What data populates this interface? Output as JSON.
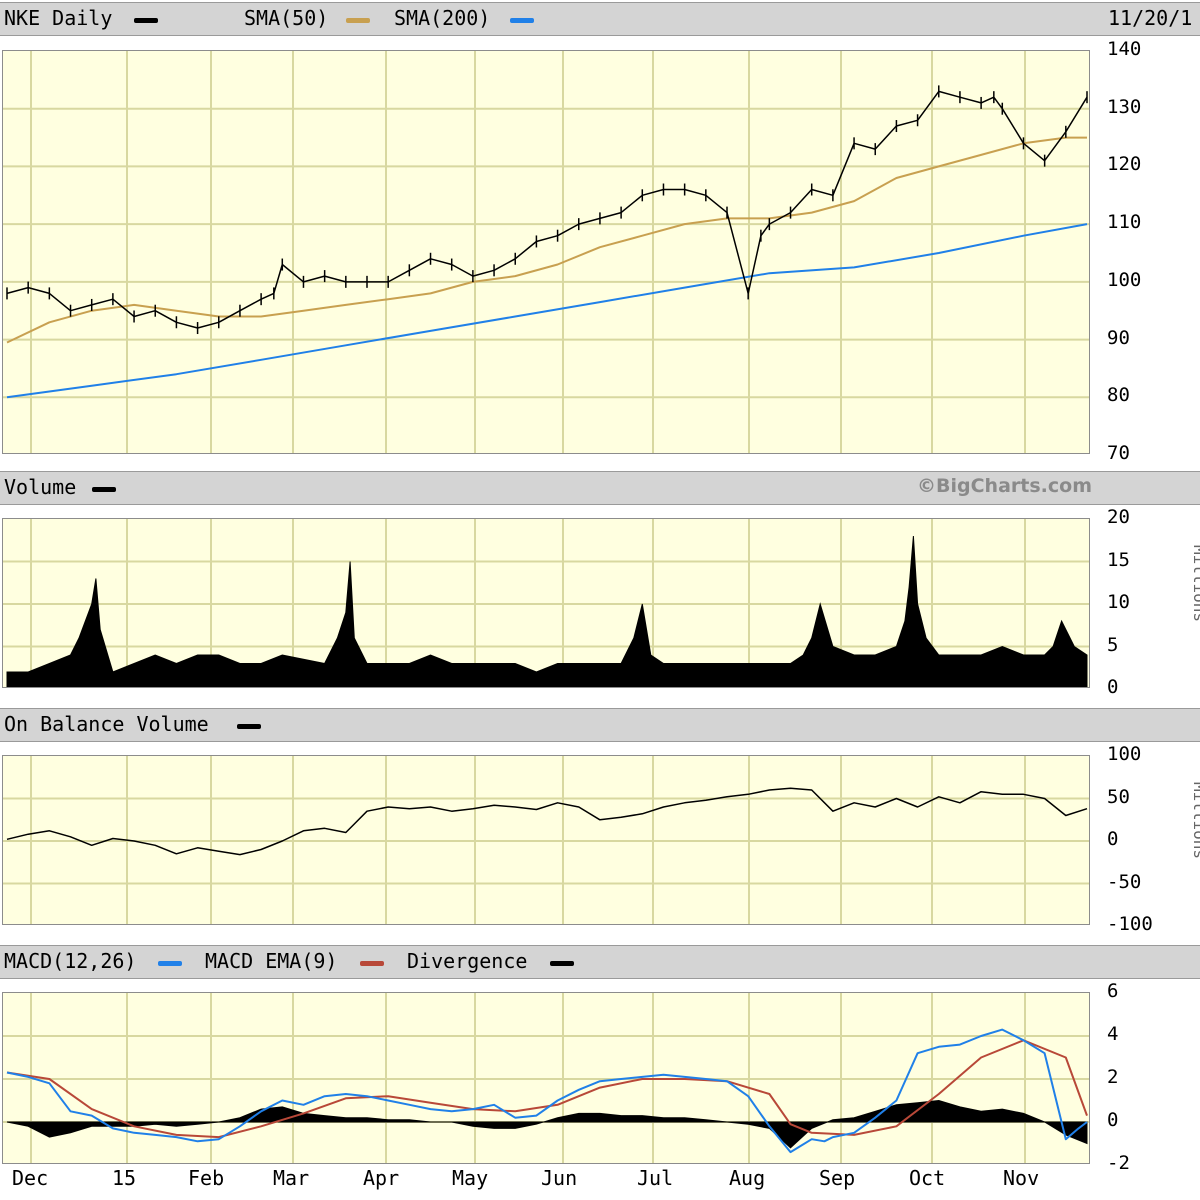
{
  "headers": {
    "price": {
      "title": "NKE Daily",
      "sma50": "SMA(50)",
      "sma200": "SMA(200)",
      "date": "11/20/1"
    },
    "volume": {
      "title": "Volume",
      "copyright": "©BigCharts.com"
    },
    "obv": {
      "title": "On Balance Volume"
    },
    "macd": {
      "title": "MACD(12,26)",
      "ema": "MACD EMA(9)",
      "div": "Divergence"
    }
  },
  "units": {
    "volume": "Millions",
    "obv": "Millions"
  },
  "colors": {
    "price": "#000000",
    "sma50": "#c8a050",
    "sma200": "#2080e8",
    "macd": "#2080e8",
    "ema": "#b84838",
    "grid": "#d8d8a0",
    "bg": "#ffffe0"
  },
  "chart_data": [
    {
      "type": "line",
      "title": "NKE Daily",
      "ylim": [
        70,
        140
      ],
      "yticks": [
        "140",
        "130",
        "120",
        "110",
        "100",
        "90",
        "80",
        "70"
      ],
      "x_labels": [
        "Dec",
        "15",
        "Feb",
        "Mar",
        "Apr",
        "May",
        "Jun",
        "Jul",
        "Aug",
        "Sep",
        "Oct",
        "Nov"
      ],
      "series": [
        {
          "name": "NKE Daily",
          "x": [
            0,
            5,
            10,
            15,
            20,
            25,
            30,
            35,
            40,
            45,
            50,
            55,
            60,
            63,
            65,
            70,
            75,
            80,
            85,
            90,
            95,
            100,
            105,
            110,
            115,
            120,
            125,
            130,
            135,
            140,
            145,
            150,
            155,
            160,
            165,
            170,
            175,
            178,
            180,
            185,
            190,
            195,
            200,
            205,
            210,
            215,
            220,
            225,
            230,
            233,
            235,
            240,
            245,
            250,
            255
          ],
          "values": [
            98,
            99,
            98,
            95,
            96,
            97,
            94,
            95,
            93,
            92,
            93,
            95,
            97,
            98,
            103,
            100,
            101,
            100,
            100,
            100,
            102,
            104,
            103,
            101,
            102,
            104,
            107,
            108,
            110,
            111,
            112,
            115,
            116,
            116,
            115,
            112,
            98,
            108,
            110,
            112,
            116,
            115,
            124,
            123,
            127,
            128,
            133,
            132,
            131,
            132,
            130,
            124,
            121,
            126,
            132
          ]
        },
        {
          "name": "SMA(50)",
          "x": [
            0,
            10,
            20,
            30,
            40,
            50,
            60,
            70,
            80,
            90,
            100,
            110,
            120,
            130,
            140,
            150,
            160,
            170,
            180,
            190,
            200,
            210,
            220,
            230,
            240,
            250,
            255
          ],
          "values": [
            89.5,
            93,
            95,
            96,
            95,
            94,
            94,
            95,
            96,
            97,
            98,
            100,
            101,
            103,
            106,
            108,
            110,
            111,
            111,
            112,
            114,
            118,
            120,
            122,
            124,
            125,
            125
          ]
        },
        {
          "name": "SMA(200)",
          "x": [
            0,
            20,
            40,
            60,
            80,
            100,
            120,
            140,
            160,
            180,
            200,
            220,
            240,
            255
          ],
          "values": [
            80,
            82,
            84,
            86.5,
            89,
            91.5,
            94,
            96.5,
            99,
            101.5,
            102.5,
            105,
            108,
            110
          ]
        }
      ]
    },
    {
      "type": "bar",
      "title": "Volume",
      "ylabel": "Millions",
      "ylim": [
        0,
        20
      ],
      "yticks": [
        "20",
        "15",
        "10",
        "5",
        "0"
      ],
      "series": [
        {
          "name": "Volume",
          "x": [
            0,
            5,
            10,
            15,
            17,
            20,
            21,
            22,
            25,
            30,
            35,
            40,
            45,
            50,
            55,
            60,
            65,
            75,
            78,
            80,
            81,
            82,
            85,
            90,
            95,
            100,
            105,
            110,
            115,
            120,
            125,
            130,
            140,
            145,
            148,
            150,
            152,
            155,
            160,
            165,
            170,
            180,
            185,
            188,
            190,
            192,
            195,
            200,
            205,
            210,
            212,
            213,
            214,
            215,
            217,
            220,
            225,
            230,
            235,
            240,
            245,
            247,
            249,
            252,
            255
          ],
          "values": [
            2,
            2,
            3,
            4,
            6,
            10,
            13,
            7,
            2,
            3,
            4,
            3,
            4,
            4,
            3,
            3,
            4,
            3,
            6,
            9,
            15,
            6,
            3,
            3,
            3,
            4,
            3,
            3,
            3,
            3,
            2,
            3,
            3,
            3,
            6,
            10,
            4,
            3,
            3,
            3,
            3,
            3,
            3,
            4,
            6,
            10,
            5,
            4,
            4,
            5,
            8,
            12,
            18,
            10,
            6,
            4,
            4,
            4,
            5,
            4,
            4,
            5,
            8,
            5,
            4
          ]
        }
      ]
    },
    {
      "type": "line",
      "title": "On Balance Volume",
      "ylabel": "Millions",
      "ylim": [
        -100,
        100
      ],
      "yticks": [
        "100",
        "50",
        "0",
        "-50",
        "-100"
      ],
      "series": [
        {
          "name": "On Balance Volume",
          "x": [
            0,
            5,
            10,
            15,
            20,
            25,
            30,
            35,
            40,
            45,
            50,
            55,
            60,
            65,
            70,
            75,
            80,
            82,
            85,
            90,
            95,
            100,
            105,
            110,
            115,
            120,
            125,
            130,
            135,
            140,
            145,
            150,
            155,
            160,
            165,
            170,
            175,
            180,
            185,
            190,
            195,
            200,
            205,
            210,
            215,
            220,
            225,
            230,
            235,
            240,
            245,
            250,
            255
          ],
          "values": [
            2,
            8,
            12,
            5,
            -5,
            3,
            0,
            -5,
            -15,
            -8,
            -12,
            -16,
            -10,
            0,
            12,
            15,
            10,
            20,
            35,
            40,
            38,
            40,
            35,
            38,
            42,
            40,
            37,
            45,
            40,
            25,
            28,
            32,
            40,
            45,
            48,
            52,
            55,
            60,
            62,
            60,
            35,
            45,
            40,
            50,
            40,
            52,
            45,
            58,
            55,
            55,
            50,
            30,
            38
          ]
        }
      ]
    },
    {
      "type": "line",
      "title": "MACD(12,26)",
      "ylim": [
        -2,
        6
      ],
      "yticks": [
        "6",
        "4",
        "2",
        "0",
        "-2"
      ],
      "series": [
        {
          "name": "MACD(12,26)",
          "x": [
            0,
            5,
            10,
            15,
            20,
            25,
            30,
            35,
            40,
            45,
            50,
            55,
            60,
            65,
            70,
            75,
            80,
            85,
            90,
            95,
            100,
            105,
            110,
            115,
            120,
            125,
            130,
            135,
            140,
            145,
            150,
            155,
            160,
            165,
            170,
            175,
            180,
            185,
            190,
            193,
            195,
            200,
            205,
            210,
            215,
            220,
            225,
            230,
            235,
            240,
            245,
            250,
            253,
            255
          ],
          "values": [
            2.3,
            2.1,
            1.8,
            0.5,
            0.3,
            -0.3,
            -0.5,
            -0.6,
            -0.7,
            -0.9,
            -0.8,
            -0.2,
            0.5,
            1.0,
            0.8,
            1.2,
            1.3,
            1.2,
            1.0,
            0.8,
            0.6,
            0.5,
            0.6,
            0.8,
            0.2,
            0.3,
            1.0,
            1.5,
            1.9,
            2.0,
            2.1,
            2.2,
            2.1,
            2.0,
            1.9,
            1.2,
            -0.2,
            -1.4,
            -0.8,
            -0.9,
            -0.7,
            -0.5,
            0.2,
            1.0,
            3.2,
            3.5,
            3.6,
            4.0,
            4.3,
            3.8,
            3.2,
            -0.8,
            -0.3,
            0.0
          ]
        },
        {
          "name": "MACD EMA(9)",
          "x": [
            0,
            10,
            20,
            30,
            40,
            50,
            60,
            70,
            80,
            90,
            100,
            110,
            120,
            130,
            140,
            150,
            160,
            170,
            180,
            185,
            190,
            200,
            210,
            220,
            230,
            240,
            250,
            255
          ],
          "values": [
            2.3,
            2.0,
            0.6,
            -0.2,
            -0.6,
            -0.7,
            -0.2,
            0.4,
            1.1,
            1.2,
            0.9,
            0.6,
            0.5,
            0.8,
            1.6,
            2.0,
            2.0,
            1.9,
            1.3,
            -0.1,
            -0.5,
            -0.6,
            -0.2,
            1.3,
            3.0,
            3.8,
            3.0,
            0.3
          ]
        },
        {
          "name": "Divergence",
          "x": [
            0,
            5,
            10,
            15,
            20,
            25,
            30,
            35,
            40,
            45,
            50,
            55,
            60,
            65,
            70,
            75,
            80,
            85,
            90,
            95,
            100,
            105,
            110,
            115,
            120,
            125,
            130,
            135,
            140,
            145,
            150,
            155,
            160,
            165,
            170,
            175,
            180,
            185,
            190,
            195,
            200,
            205,
            210,
            215,
            220,
            225,
            230,
            235,
            240,
            245,
            250,
            255
          ],
          "values": [
            0,
            -0.2,
            -0.7,
            -0.5,
            -0.2,
            -0.2,
            -0.2,
            -0.1,
            -0.2,
            -0.1,
            0,
            0.2,
            0.6,
            0.7,
            0.4,
            0.3,
            0.2,
            0.2,
            0.1,
            0.1,
            0,
            0,
            -0.2,
            -0.3,
            -0.3,
            -0.1,
            0.2,
            0.4,
            0.4,
            0.3,
            0.3,
            0.2,
            0.2,
            0.1,
            0,
            -0.1,
            -0.3,
            -1.2,
            -0.3,
            0.1,
            0.2,
            0.5,
            0.8,
            0.9,
            1.0,
            0.7,
            0.5,
            0.6,
            0.4,
            0,
            -0.6,
            -1.0
          ]
        }
      ]
    }
  ]
}
